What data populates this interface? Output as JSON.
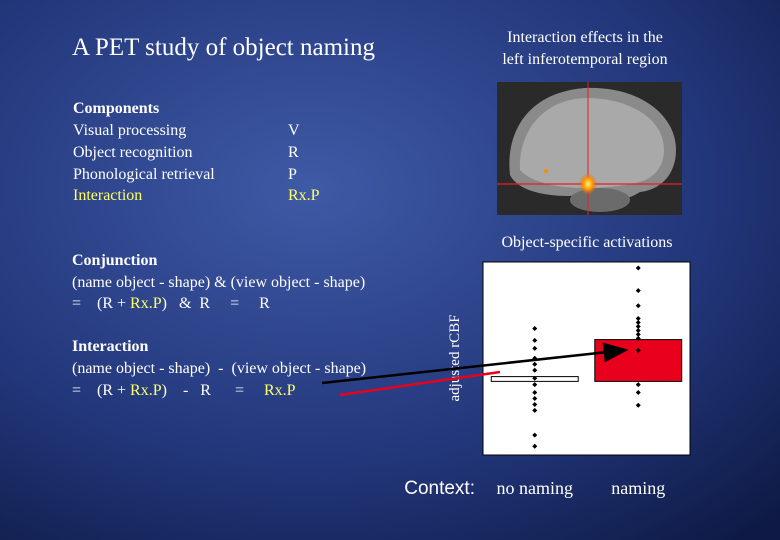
{
  "title": "A PET study of object naming",
  "components": {
    "heading": "Components",
    "items": [
      {
        "name": "Visual processing",
        "code": "V"
      },
      {
        "name": "Object recognition",
        "code": "R"
      },
      {
        "name": "Phonological retrieval",
        "code": "P"
      },
      {
        "name": "Interaction",
        "code": "Rx.P"
      }
    ]
  },
  "conjunction": {
    "heading": "Conjunction",
    "formula": "(name object - shape) & (view object - shape)",
    "expression": [
      "=    (R + ",
      "Rx.P",
      ")   &  R     =     R"
    ]
  },
  "interaction": {
    "heading": "Interaction",
    "formula": "(name object - shape)  -  (view object - shape)",
    "expression": [
      "=    (R + ",
      "Rx.P",
      ")    -   R      =     ",
      "Rx.P"
    ]
  },
  "image_caption": [
    "Interaction effects in the",
    "left inferotemporal region"
  ],
  "chart_data": {
    "type": "bar",
    "title": "Object-specific activations",
    "y_label": "adjusted rCBF",
    "x_label": "Context:",
    "categories": [
      "no naming",
      "naming"
    ],
    "values": [
      0.12,
      1.05
    ],
    "colors": [
      "#ffffff",
      "#e8001c"
    ],
    "points": [
      [
        1.33,
        1.03,
        0.83,
        0.58,
        0.43,
        0.28,
        0.08,
        -0.08,
        -0.28,
        -0.43,
        -0.58,
        -0.73,
        -1.35,
        -1.63
      ],
      [
        2.85,
        2.28,
        1.9,
        1.58,
        1.48,
        1.38,
        1.28,
        1.18,
        1.08,
        0.78,
        -0.08,
        -0.28,
        -0.6
      ]
    ],
    "ylim": [
      -1.85,
      3
    ]
  }
}
